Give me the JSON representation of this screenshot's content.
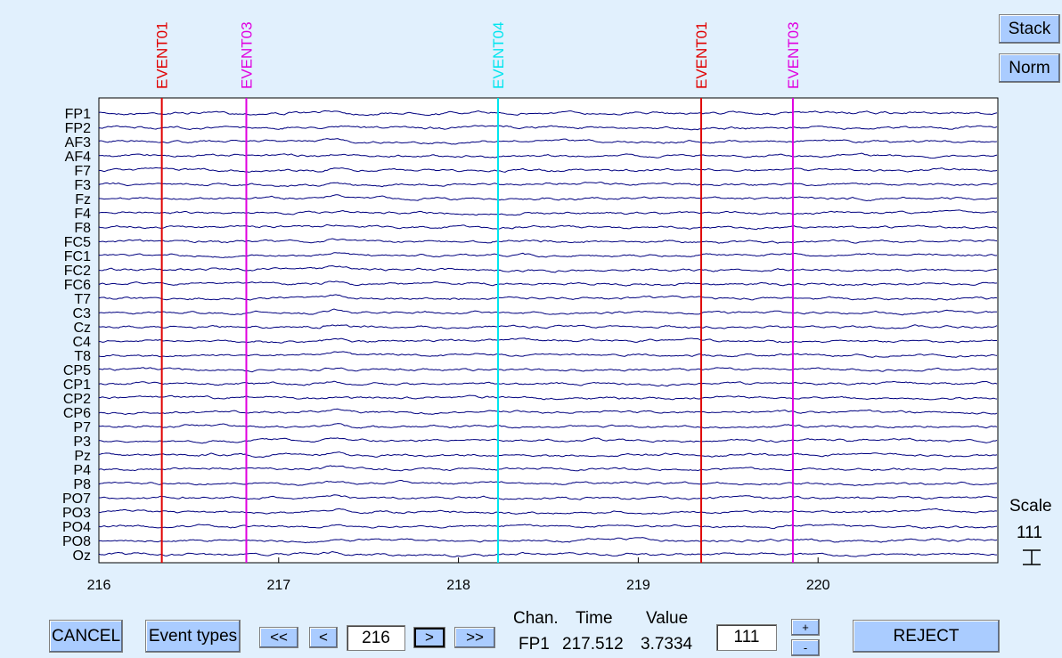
{
  "buttons": {
    "stack": "Stack",
    "norm": "Norm",
    "cancel": "CANCEL",
    "event_types": "Event types",
    "first": "<<",
    "prev": "<",
    "next": ">",
    "last": ">>",
    "plus": "+",
    "minus": "-",
    "reject": "REJECT"
  },
  "window_start": "216",
  "scale": {
    "label": "Scale",
    "value": "111",
    "input": "111"
  },
  "cursor_readout": {
    "chan_header": "Chan.",
    "time_header": "Time",
    "value_header": "Value",
    "chan": "FP1",
    "time": "217.512",
    "value": "3.7334"
  },
  "channels": [
    "FP1",
    "FP2",
    "AF3",
    "AF4",
    "F7",
    "F3",
    "Fz",
    "F4",
    "F8",
    "FC5",
    "FC1",
    "FC2",
    "FC6",
    "T7",
    "C3",
    "Cz",
    "C4",
    "T8",
    "CP5",
    "CP1",
    "CP2",
    "CP6",
    "P7",
    "P3",
    "Pz",
    "P4",
    "P8",
    "PO7",
    "PO3",
    "PO4",
    "PO8",
    "Oz"
  ],
  "chart_data": {
    "type": "line",
    "xlim": [
      216,
      221
    ],
    "x_ticks": [
      216,
      217,
      218,
      219,
      220
    ],
    "trace_color": "#00007f",
    "events": [
      {
        "label": "EVENT01",
        "time": 216.35,
        "color": "#e00000"
      },
      {
        "label": "EVENT03",
        "time": 216.82,
        "color": "#e000e0"
      },
      {
        "label": "EVENT04",
        "time": 218.22,
        "color": "#00e5ee"
      },
      {
        "label": "EVENT01",
        "time": 219.35,
        "color": "#e00000"
      },
      {
        "label": "EVENT03",
        "time": 219.86,
        "color": "#e000e0"
      }
    ]
  }
}
